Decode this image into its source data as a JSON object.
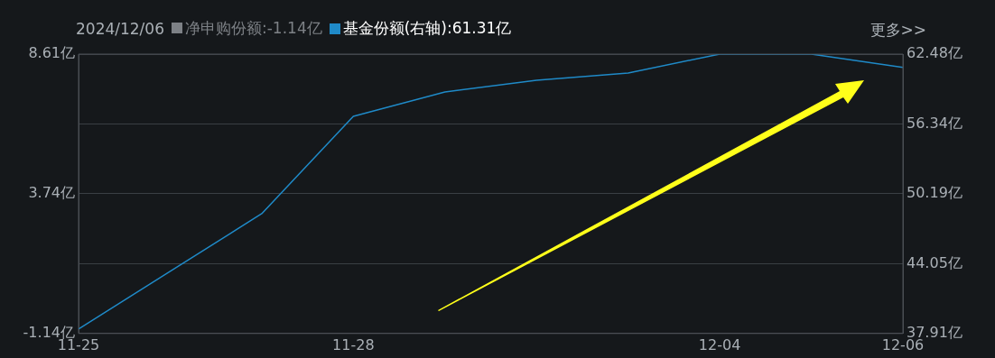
{
  "chart_data": {
    "type": "line",
    "categories": [
      "11-25",
      null,
      null,
      "11-28",
      null,
      null,
      null,
      "12-04",
      null,
      "12-06"
    ],
    "series": [
      {
        "name": "基金份额(右轴)",
        "color": "#1f8ac8",
        "axis": "y2",
        "values": [
          38.3,
          43.37,
          48.45,
          57.01,
          59.15,
          60.18,
          60.82,
          62.48,
          62.48,
          61.31
        ]
      }
    ],
    "ylim": [
      -1.14,
      8.61
    ],
    "yticks": [
      {
        "value": -1.14,
        "label": "-1.14亿"
      },
      {
        "value": 3.74,
        "label": "3.74亿"
      },
      {
        "value": 8.61,
        "label": "8.61亿"
      }
    ],
    "y2lim": [
      37.91,
      62.48
    ],
    "y2ticks": [
      {
        "value": 37.91,
        "label": "37.91亿"
      },
      {
        "value": 44.05,
        "label": "44.05亿"
      },
      {
        "value": 50.19,
        "label": "50.19亿"
      },
      {
        "value": 56.34,
        "label": "56.34亿"
      },
      {
        "value": 62.48,
        "label": "62.48亿"
      }
    ],
    "annotations": [
      "2024/12/06",
      "净申购份额:-1.14亿",
      ":61.31亿",
      "更多>>"
    ],
    "grid": "y2",
    "legend": "top left",
    "marker": "none",
    "line_style": "solid"
  }
}
